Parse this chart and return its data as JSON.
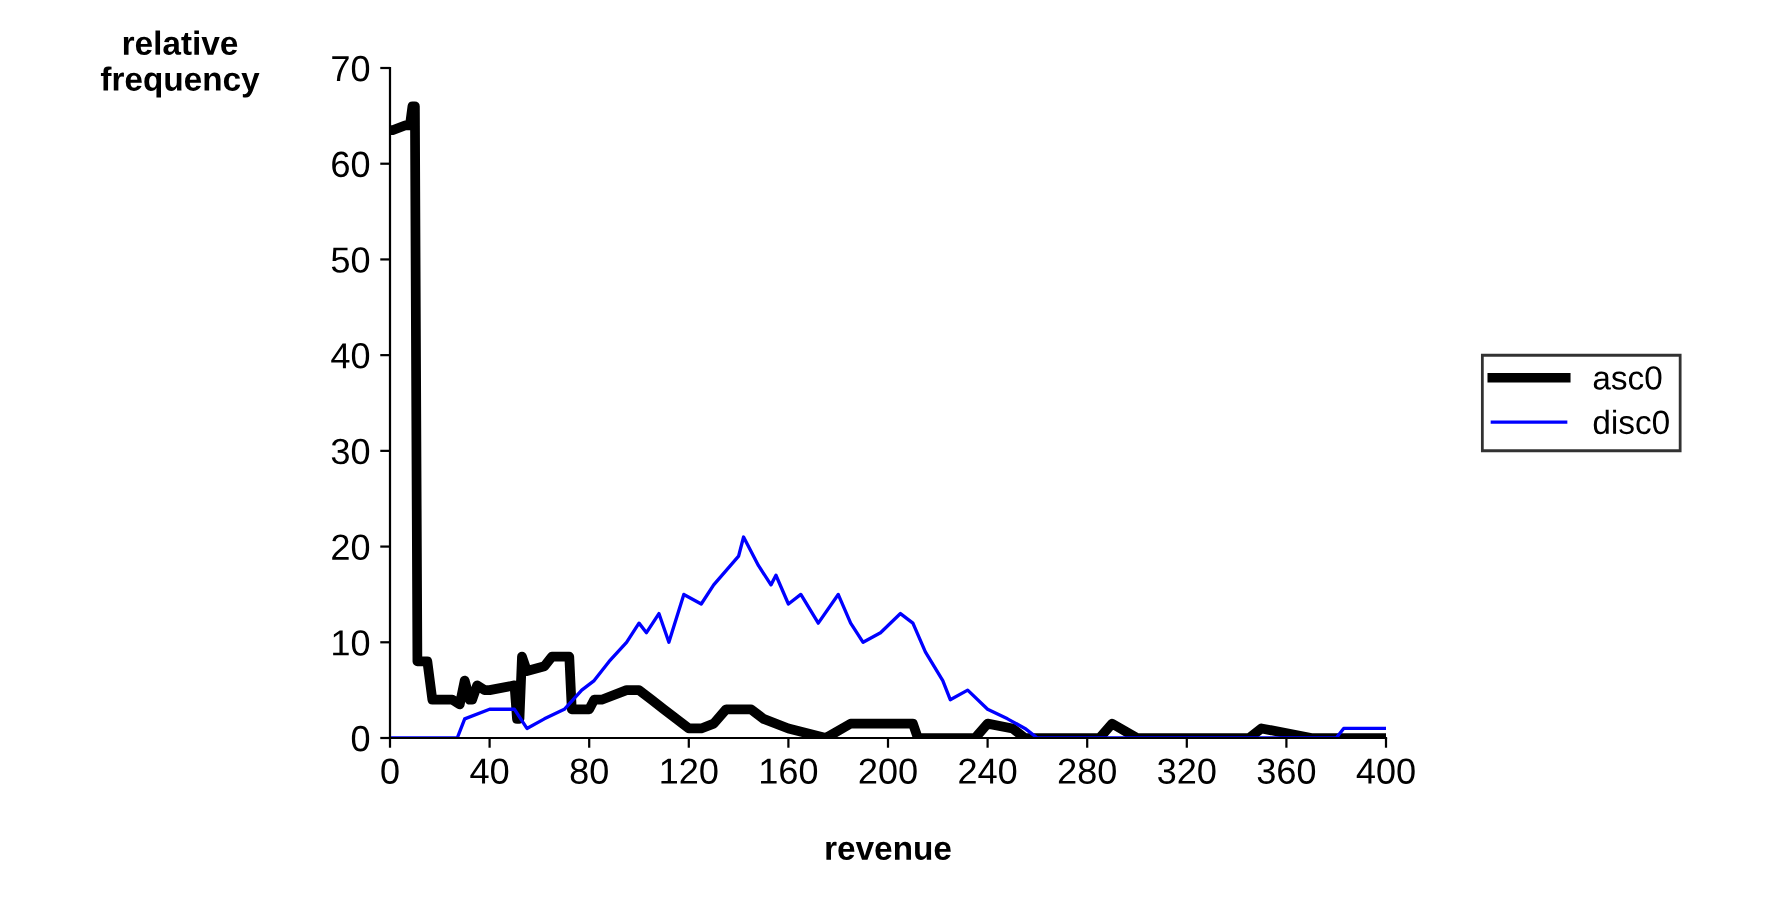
{
  "chart_data": {
    "type": "line",
    "xlabel": "revenue",
    "ylabel": "relative\nfrequency",
    "xlim": [
      0,
      400
    ],
    "ylim": [
      0,
      70
    ],
    "xticks": [
      0,
      40,
      80,
      120,
      160,
      200,
      240,
      280,
      320,
      360,
      400
    ],
    "yticks": [
      0,
      10,
      20,
      30,
      40,
      50,
      60,
      70
    ],
    "grid": false,
    "legend": "right",
    "marker": "none",
    "line_style": "solid",
    "series": [
      {
        "name": "asc0",
        "color": "#000000",
        "x": [
          0,
          1,
          6,
          8,
          9,
          10,
          11,
          12,
          15,
          17,
          25,
          28,
          30,
          32,
          33,
          35,
          38,
          40,
          50,
          51,
          52,
          53,
          55,
          62,
          65,
          72,
          73,
          80,
          82,
          85,
          95,
          100,
          105,
          110,
          115,
          120,
          125,
          130,
          135,
          145,
          150,
          160,
          175,
          185,
          210,
          212,
          235,
          240,
          250,
          255,
          285,
          290,
          300,
          345,
          350,
          370,
          400
        ],
        "values": [
          63.5,
          63.5,
          64,
          64,
          66,
          66,
          8,
          8,
          8,
          4,
          4,
          3.5,
          6,
          4,
          4,
          5.5,
          5,
          5,
          5.5,
          2,
          2,
          8.5,
          7,
          7.5,
          8.5,
          8.5,
          3,
          3,
          4,
          4,
          5,
          5,
          4,
          3,
          2,
          1,
          1,
          1.5,
          3,
          3,
          2,
          1,
          0,
          1.5,
          1.5,
          0,
          0,
          1.5,
          1,
          0,
          0,
          1.5,
          0,
          0,
          1,
          0,
          0
        ]
      },
      {
        "name": "disc0",
        "color": "#0000ff",
        "x": [
          0,
          27,
          30,
          40,
          50,
          55,
          62,
          70,
          77,
          82,
          88,
          95,
          100,
          103,
          108,
          112,
          118,
          125,
          130,
          140,
          142,
          148,
          153,
          155,
          160,
          165,
          172,
          180,
          185,
          190,
          197,
          205,
          210,
          215,
          222,
          225,
          232,
          240,
          248,
          255,
          260,
          380,
          383,
          400
        ],
        "values": [
          0,
          0,
          2,
          3,
          3,
          1,
          2,
          3,
          5,
          6,
          8,
          10,
          12,
          11,
          13,
          10,
          15,
          14,
          16,
          19,
          21,
          18,
          16,
          17,
          14,
          15,
          12,
          15,
          12,
          10,
          11,
          13,
          12,
          9,
          6,
          4,
          5,
          3,
          2,
          1,
          0,
          0,
          1,
          1
        ]
      }
    ]
  }
}
